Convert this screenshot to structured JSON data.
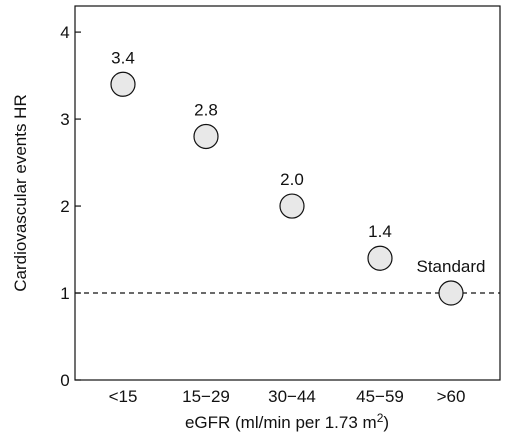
{
  "chart_data": {
    "type": "scatter",
    "title": "",
    "xlabel": "eGFR (ml/min per 1.73 m",
    "xlabel_sup": "2",
    "xlabel_tail": ")",
    "ylabel": "Cardiovascular events HR",
    "categories": [
      "<15",
      "15−29",
      "30−44",
      "45−59",
      ">60"
    ],
    "values": [
      3.4,
      2.8,
      2.0,
      1.4,
      1.0
    ],
    "point_labels": [
      "3.4",
      "2.8",
      "2.0",
      "1.4",
      "Standard"
    ],
    "ylim": [
      0,
      4.3
    ],
    "yticks": [
      0,
      1,
      2,
      3,
      4
    ],
    "reference_line": 1.0,
    "reference_line_style": "dashed",
    "grid": false,
    "marker_fill": "#e8e8e8",
    "marker_stroke": "#111111"
  }
}
